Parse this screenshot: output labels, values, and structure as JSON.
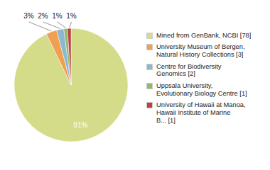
{
  "chart_data": {
    "type": "pie",
    "categories": [
      "Mined from GenBank, NCBI [78]",
      "University Museum of Bergen,\nNatural History Collections [3]",
      "Centre for Biodiversity\nGenomics [2]",
      "Uppsala University,\nEvolutionary Biology Centre [1]",
      "University of Hawaii at Manoa,\nHawaii Institute of Marine\nB... [1]"
    ],
    "values": [
      91,
      3,
      2,
      1,
      1
    ],
    "value_labels": [
      "91%",
      "3%",
      "2%",
      "1%",
      "1%"
    ],
    "colors": [
      "#d4dc8a",
      "#f0a050",
      "#8ab8d0",
      "#90b870",
      "#c04040"
    ],
    "data_labels": true,
    "legend": "right"
  }
}
